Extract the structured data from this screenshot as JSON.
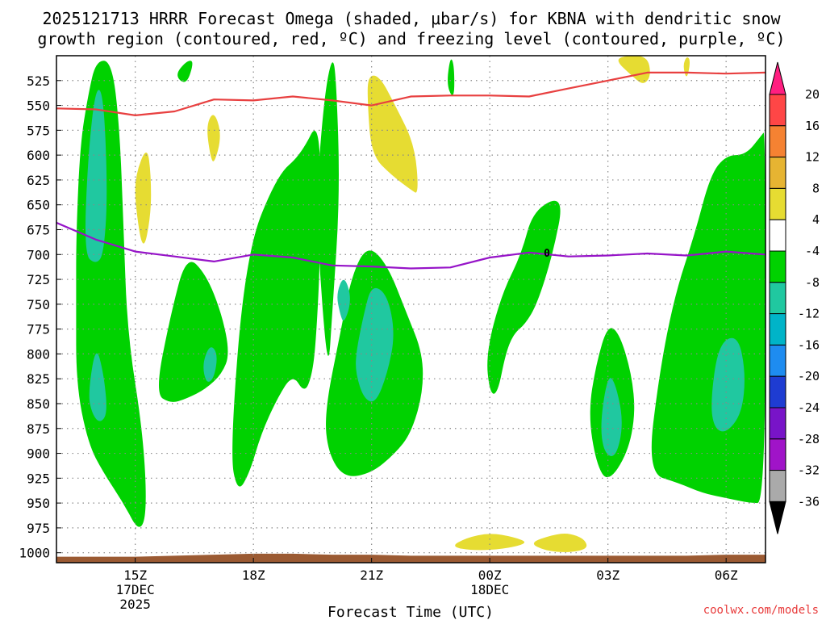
{
  "chart_data": {
    "type": "contour",
    "title": {
      "line1": "2025121713 HRRR Forecast Omega (shaded, μbar/s) for KBNA with dendritic snow",
      "line2": "growth region (contoured, red, ºC) and freezing level (contoured, purple, ºC)"
    },
    "xlabel": "Forecast Time (UTC)",
    "source": "coolwx.com/models",
    "x_hours": [
      13,
      14,
      15,
      16,
      17,
      18,
      19,
      20,
      21,
      22,
      23,
      24,
      25,
      26,
      27,
      28,
      29,
      30,
      31
    ],
    "xlim": [
      13,
      31
    ],
    "x_ticks": [
      {
        "hour": 15,
        "label": "15Z",
        "sub1": "17DEC",
        "sub2": "2025"
      },
      {
        "hour": 18,
        "label": "18Z",
        "sub1": "",
        "sub2": ""
      },
      {
        "hour": 21,
        "label": "21Z",
        "sub1": "",
        "sub2": ""
      },
      {
        "hour": 24,
        "label": "00Z",
        "sub1": "18DEC",
        "sub2": ""
      },
      {
        "hour": 27,
        "label": "03Z",
        "sub1": "",
        "sub2": ""
      },
      {
        "hour": 30,
        "label": "06Z",
        "sub1": "",
        "sub2": ""
      }
    ],
    "ylim": [
      1010,
      500
    ],
    "y_ticks": [
      525,
      550,
      575,
      600,
      625,
      650,
      675,
      700,
      725,
      750,
      775,
      800,
      825,
      850,
      875,
      900,
      925,
      950,
      975,
      1000
    ],
    "dendritic_line_mb": [
      553,
      554,
      560,
      556,
      544,
      545,
      541,
      545,
      550,
      541,
      540,
      540,
      541,
      533,
      525,
      517,
      517,
      518,
      517
    ],
    "freezing_line_mb": [
      668,
      685,
      697,
      702,
      707,
      700,
      703,
      711,
      712,
      714,
      713,
      703,
      698,
      702,
      701,
      699,
      701,
      697,
      700
    ],
    "freezing_label": "0",
    "freezing_label_hour": 25.0,
    "omega_regions": [
      {
        "level": -4,
        "color": "#00d200",
        "polygon": [
          [
            13.5,
            680
          ],
          [
            13.6,
            590
          ],
          [
            13.8,
            540
          ],
          [
            14.0,
            505
          ],
          [
            14.4,
            505
          ],
          [
            14.6,
            570
          ],
          [
            14.7,
            670
          ],
          [
            14.8,
            780
          ],
          [
            15.2,
            880
          ],
          [
            15.3,
            960
          ],
          [
            15.1,
            980
          ],
          [
            14.7,
            950
          ],
          [
            14.2,
            920
          ],
          [
            13.8,
            890
          ],
          [
            13.5,
            830
          ],
          [
            13.5,
            750
          ]
        ]
      },
      {
        "level": -4,
        "color": "#00d200",
        "polygon": [
          [
            15.5,
            840
          ],
          [
            15.9,
            760
          ],
          [
            16.3,
            700
          ],
          [
            16.8,
            720
          ],
          [
            17.2,
            760
          ],
          [
            17.4,
            800
          ],
          [
            17.2,
            820
          ],
          [
            16.8,
            835
          ],
          [
            16.3,
            845
          ],
          [
            15.9,
            850
          ]
        ]
      },
      {
        "level": -4,
        "color": "#00d200",
        "polygon": [
          [
            17.4,
            900
          ],
          [
            17.8,
            700
          ],
          [
            18.6,
            620
          ],
          [
            19.2,
            600
          ],
          [
            19.7,
            560
          ],
          [
            19.7,
            700
          ],
          [
            19.6,
            780
          ],
          [
            19.5,
            820
          ],
          [
            19.3,
            840
          ],
          [
            19.0,
            820
          ],
          [
            18.6,
            845
          ],
          [
            18.2,
            880
          ],
          [
            17.9,
            920
          ],
          [
            17.6,
            940
          ]
        ]
      },
      {
        "level": -4,
        "color": "#00d200",
        "polygon": [
          [
            19.6,
            640
          ],
          [
            19.8,
            540
          ],
          [
            20.0,
            500
          ],
          [
            20.1,
            520
          ],
          [
            20.2,
            640
          ],
          [
            20.0,
            760
          ],
          [
            19.9,
            820
          ],
          [
            19.7,
            730
          ]
        ]
      },
      {
        "level": -4,
        "color": "#00d200",
        "polygon": [
          [
            19.8,
            860
          ],
          [
            20.2,
            780
          ],
          [
            20.5,
            720
          ],
          [
            20.9,
            690
          ],
          [
            21.4,
            710
          ],
          [
            21.9,
            760
          ],
          [
            22.3,
            800
          ],
          [
            22.3,
            840
          ],
          [
            22.0,
            880
          ],
          [
            21.6,
            900
          ],
          [
            21.0,
            920
          ],
          [
            20.3,
            925
          ],
          [
            19.9,
            900
          ]
        ]
      },
      {
        "level": -4,
        "color": "#00d200",
        "polygon": [
          [
            23.9,
            800
          ],
          [
            24.3,
            740
          ],
          [
            24.8,
            700
          ],
          [
            25.1,
            655
          ],
          [
            25.9,
            640
          ],
          [
            25.6,
            700
          ],
          [
            25.2,
            750
          ],
          [
            24.9,
            770
          ],
          [
            24.6,
            780
          ],
          [
            24.4,
            800
          ],
          [
            24.2,
            840
          ],
          [
            24.0,
            840
          ]
        ]
      },
      {
        "level": -4,
        "color": "#00d200",
        "polygon": [
          [
            26.5,
            860
          ],
          [
            26.7,
            810
          ],
          [
            27.0,
            770
          ],
          [
            27.3,
            780
          ],
          [
            27.6,
            820
          ],
          [
            27.7,
            860
          ],
          [
            27.5,
            900
          ],
          [
            27.0,
            930
          ],
          [
            26.7,
            910
          ]
        ]
      },
      {
        "level": -4,
        "color": "#00d200",
        "polygon": [
          [
            28.0,
            920
          ],
          [
            28.3,
            820
          ],
          [
            28.7,
            740
          ],
          [
            29.2,
            680
          ],
          [
            29.6,
            620
          ],
          [
            30.0,
            600
          ],
          [
            30.5,
            600
          ],
          [
            30.9,
            580
          ],
          [
            31,
            575
          ],
          [
            31,
            950
          ],
          [
            30.6,
            950
          ],
          [
            30.0,
            945
          ],
          [
            29.4,
            940
          ],
          [
            28.8,
            930
          ]
        ]
      },
      {
        "level": -4,
        "color": "#00d200",
        "polygon": [
          [
            16.0,
            520
          ],
          [
            16.3,
            505
          ],
          [
            16.5,
            505
          ],
          [
            16.3,
            530
          ]
        ]
      },
      {
        "level": -4,
        "color": "#00d200",
        "polygon": [
          [
            22.9,
            530
          ],
          [
            23.0,
            500
          ],
          [
            23.1,
            510
          ],
          [
            23.1,
            545
          ]
        ]
      },
      {
        "level": -8,
        "color": "#20c8a0",
        "polygon": [
          [
            13.7,
            700
          ],
          [
            13.8,
            600
          ],
          [
            14.0,
            530
          ],
          [
            14.2,
            540
          ],
          [
            14.3,
            640
          ],
          [
            14.2,
            700
          ],
          [
            14.0,
            710
          ]
        ]
      },
      {
        "level": -8,
        "color": "#20c8a0",
        "polygon": [
          [
            13.8,
            840
          ],
          [
            14.0,
            790
          ],
          [
            14.2,
            820
          ],
          [
            14.3,
            860
          ],
          [
            14.1,
            870
          ],
          [
            13.9,
            860
          ]
        ]
      },
      {
        "level": -8,
        "color": "#20c8a0",
        "polygon": [
          [
            16.7,
            810
          ],
          [
            16.9,
            790
          ],
          [
            17.1,
            800
          ],
          [
            17.0,
            825
          ],
          [
            16.8,
            830
          ]
        ]
      },
      {
        "level": -8,
        "color": "#20c8a0",
        "polygon": [
          [
            20.1,
            740
          ],
          [
            20.3,
            720
          ],
          [
            20.5,
            745
          ],
          [
            20.3,
            770
          ],
          [
            20.2,
            760
          ]
        ]
      },
      {
        "level": -8,
        "color": "#20c8a0",
        "polygon": [
          [
            20.6,
            800
          ],
          [
            20.8,
            760
          ],
          [
            21.0,
            730
          ],
          [
            21.4,
            740
          ],
          [
            21.6,
            780
          ],
          [
            21.4,
            820
          ],
          [
            21.1,
            850
          ],
          [
            20.8,
            845
          ],
          [
            20.6,
            820
          ]
        ]
      },
      {
        "level": -8,
        "color": "#20c8a0",
        "polygon": [
          [
            26.8,
            870
          ],
          [
            27.0,
            820
          ],
          [
            27.2,
            830
          ],
          [
            27.4,
            870
          ],
          [
            27.2,
            905
          ],
          [
            26.9,
            900
          ]
        ]
      },
      {
        "level": -8,
        "color": "#20c8a0",
        "polygon": [
          [
            29.6,
            850
          ],
          [
            29.8,
            790
          ],
          [
            30.3,
            780
          ],
          [
            30.5,
            820
          ],
          [
            30.4,
            860
          ],
          [
            30.0,
            880
          ],
          [
            29.7,
            875
          ]
        ]
      },
      {
        "level": 4,
        "color": "#e6dc32",
        "polygon": [
          [
            15.2,
            700
          ],
          [
            15.0,
            650
          ],
          [
            15.0,
            620
          ],
          [
            15.3,
            590
          ],
          [
            15.4,
            620
          ],
          [
            15.4,
            660
          ]
        ]
      },
      {
        "level": 4,
        "color": "#e6dc32",
        "polygon": [
          [
            16.9,
            600
          ],
          [
            16.8,
            570
          ],
          [
            17.0,
            555
          ],
          [
            17.2,
            580
          ],
          [
            17.0,
            610
          ]
        ]
      },
      {
        "level": 4,
        "color": "#e6dc32",
        "polygon": [
          [
            21.0,
            600
          ],
          [
            20.9,
            550
          ],
          [
            20.9,
            520
          ],
          [
            21.2,
            520
          ],
          [
            21.6,
            550
          ],
          [
            22.1,
            590
          ],
          [
            22.2,
            640
          ],
          [
            22.0,
            635
          ],
          [
            21.5,
            620
          ]
        ]
      },
      {
        "level": 4,
        "color": "#e6dc32",
        "polygon": [
          [
            27.2,
            505
          ],
          [
            27.4,
            500
          ],
          [
            28.0,
            500
          ],
          [
            28.1,
            520
          ],
          [
            27.9,
            530
          ],
          [
            27.6,
            520
          ]
        ]
      },
      {
        "level": 4,
        "color": "#e6dc32",
        "polygon": [
          [
            28.9,
            510
          ],
          [
            29.0,
            500
          ],
          [
            29.1,
            505
          ],
          [
            29.0,
            525
          ]
        ]
      },
      {
        "level": 4,
        "color": "#e6dc32",
        "polygon": [
          [
            23.0,
            994
          ],
          [
            23.4,
            985
          ],
          [
            24.0,
            980
          ],
          [
            24.6,
            984
          ],
          [
            25.0,
            990
          ],
          [
            24.4,
            996
          ],
          [
            23.6,
            998
          ]
        ]
      },
      {
        "level": 4,
        "color": "#e6dc32",
        "polygon": [
          [
            25.0,
            990
          ],
          [
            25.6,
            982
          ],
          [
            26.0,
            980
          ],
          [
            26.4,
            986
          ],
          [
            26.5,
            996
          ],
          [
            26.0,
            1000
          ],
          [
            25.4,
            998
          ]
        ]
      }
    ],
    "terrain_color": "#9b5a32",
    "terrain_top_mb": [
      1004,
      1004,
      1004,
      1003,
      1002,
      1001,
      1001,
      1002,
      1002,
      1003,
      1003,
      1003,
      1003,
      1003,
      1003,
      1003,
      1003,
      1002,
      1002
    ],
    "colorbar": {
      "labels": [
        "20",
        "16",
        "12",
        "8",
        "4",
        "-4",
        "-8",
        "-12",
        "-16",
        "-20",
        "-24",
        "-28",
        "-32",
        "-36"
      ],
      "colors": [
        "#ff1e80",
        "#ff4646",
        "#f58232",
        "#e6b432",
        "#e6dc32",
        "#ffffff",
        "#00d200",
        "#20c8a0",
        "#00b4c8",
        "#1e8cf0",
        "#1e3cd2",
        "#7814c8",
        "#a014c8",
        "#aaaaaa",
        "#000000"
      ]
    },
    "dendritic_color": "#e84040",
    "freezing_color": "#9614c8"
  }
}
